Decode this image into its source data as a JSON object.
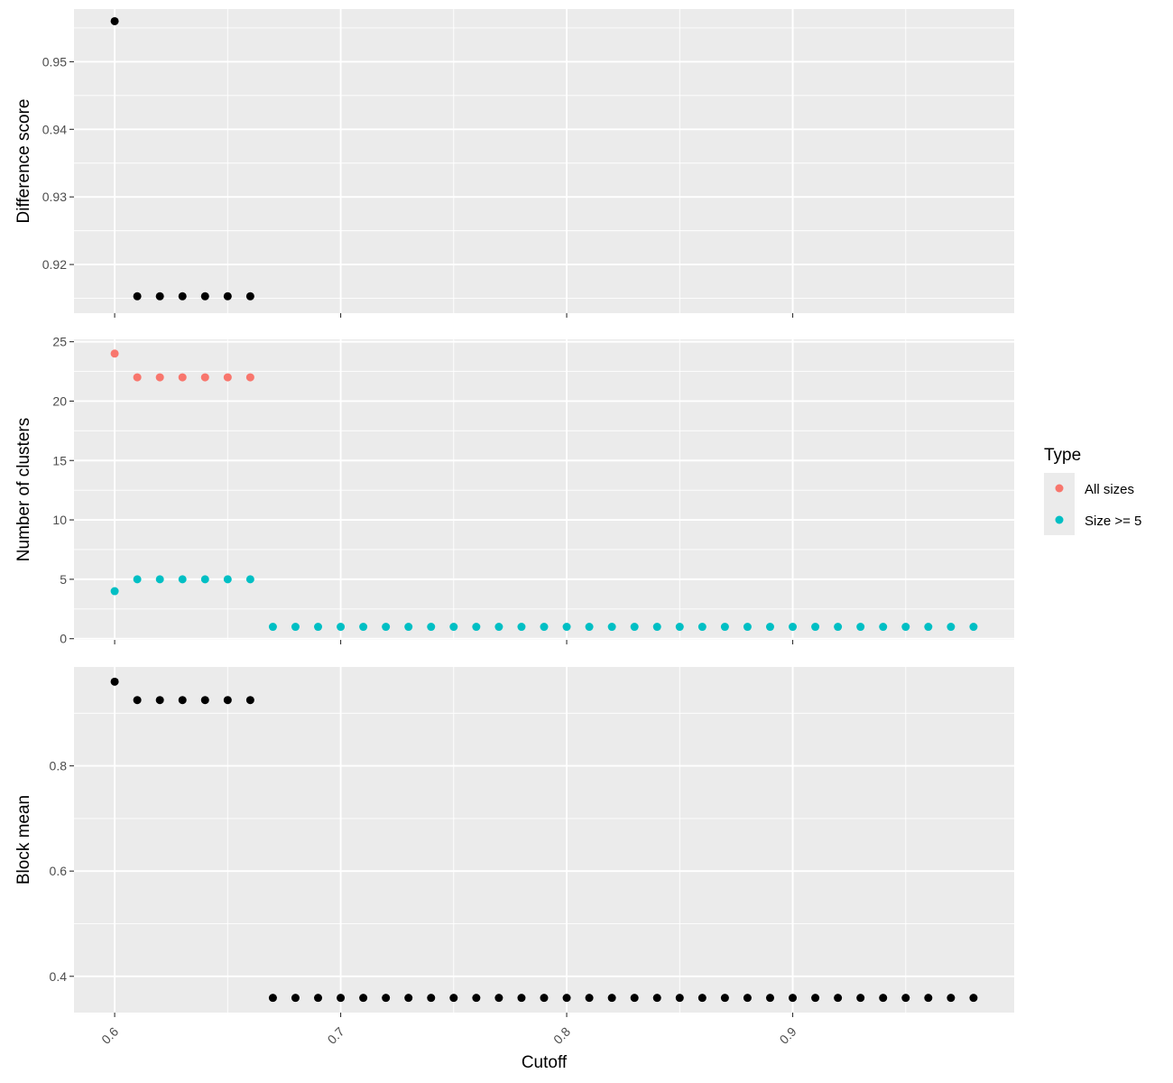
{
  "chart_data": {
    "type": "scatter",
    "xlabel": "Cutoff",
    "xlim": [
      0.582,
      0.998
    ],
    "x_ticks": [
      "0.6",
      "0.7",
      "0.8",
      "0.9"
    ],
    "x_tick_values": [
      0.6,
      0.7,
      0.8,
      0.9
    ],
    "grid": true,
    "legend_placement": "right",
    "legend": {
      "title": "Type",
      "entries": [
        {
          "label": "All sizes",
          "color": "#F8766D"
        },
        {
          "label": "Size >= 5",
          "color": "#00BFC4"
        }
      ]
    },
    "panels": [
      {
        "ylabel": "Difference score",
        "ylim": [
          0.9128,
          0.9578
        ],
        "y_ticks": [
          "0.92",
          "0.93",
          "0.94",
          "0.95"
        ],
        "y_tick_values": [
          0.92,
          0.93,
          0.94,
          0.95
        ],
        "series": [
          {
            "color": "#000000",
            "points": [
              [
                0.6,
                0.956
              ],
              [
                0.61,
                0.9153
              ],
              [
                0.62,
                0.9153
              ],
              [
                0.63,
                0.9153
              ],
              [
                0.64,
                0.9153
              ],
              [
                0.65,
                0.9153
              ],
              [
                0.66,
                0.9153
              ]
            ]
          }
        ]
      },
      {
        "ylabel": "Number of clusters",
        "ylim": [
          -0.1,
          25.2
        ],
        "y_ticks": [
          "0",
          "5",
          "10",
          "15",
          "20",
          "25"
        ],
        "y_tick_values": [
          0,
          5,
          10,
          15,
          20,
          25
        ],
        "series": [
          {
            "name": "All sizes",
            "color": "#F8766D",
            "x": [
              0.6,
              0.61,
              0.62,
              0.63,
              0.64,
              0.65,
              0.66
            ],
            "values": [
              24,
              22,
              22,
              22,
              22,
              22,
              22
            ]
          },
          {
            "name": "Size >= 5",
            "color": "#00BFC4",
            "x": [
              0.6,
              0.61,
              0.62,
              0.63,
              0.64,
              0.65,
              0.66,
              0.67,
              0.68,
              0.69,
              0.7,
              0.71,
              0.72,
              0.73,
              0.74,
              0.75,
              0.76,
              0.77,
              0.78,
              0.79,
              0.8,
              0.81,
              0.82,
              0.83,
              0.84,
              0.85,
              0.86,
              0.87,
              0.88,
              0.89,
              0.9,
              0.91,
              0.92,
              0.93,
              0.94,
              0.95,
              0.96,
              0.97,
              0.98
            ],
            "values": [
              4,
              5,
              5,
              5,
              5,
              5,
              5,
              1,
              1,
              1,
              1,
              1,
              1,
              1,
              1,
              1,
              1,
              1,
              1,
              1,
              1,
              1,
              1,
              1,
              1,
              1,
              1,
              1,
              1,
              1,
              1,
              1,
              1,
              1,
              1,
              1,
              1,
              1,
              1
            ]
          }
        ]
      },
      {
        "ylabel": "Block mean",
        "ylim": [
          0.331,
          0.988
        ],
        "y_ticks": [
          "0.4",
          "0.6",
          "0.8"
        ],
        "y_tick_values": [
          0.4,
          0.6,
          0.8
        ],
        "series": [
          {
            "color": "#000000",
            "x": [
              0.6,
              0.61,
              0.62,
              0.63,
              0.64,
              0.65,
              0.66,
              0.67,
              0.68,
              0.69,
              0.7,
              0.71,
              0.72,
              0.73,
              0.74,
              0.75,
              0.76,
              0.77,
              0.78,
              0.79,
              0.8,
              0.81,
              0.82,
              0.83,
              0.84,
              0.85,
              0.86,
              0.87,
              0.88,
              0.89,
              0.9,
              0.91,
              0.92,
              0.93,
              0.94,
              0.95,
              0.96,
              0.97,
              0.98
            ],
            "values": [
              0.96,
              0.925,
              0.925,
              0.925,
              0.925,
              0.925,
              0.925,
              0.359,
              0.359,
              0.359,
              0.359,
              0.359,
              0.359,
              0.359,
              0.359,
              0.359,
              0.359,
              0.359,
              0.359,
              0.359,
              0.359,
              0.359,
              0.359,
              0.359,
              0.359,
              0.359,
              0.359,
              0.359,
              0.359,
              0.359,
              0.359,
              0.359,
              0.359,
              0.359,
              0.359,
              0.359,
              0.359,
              0.359,
              0.359
            ]
          }
        ]
      }
    ]
  }
}
